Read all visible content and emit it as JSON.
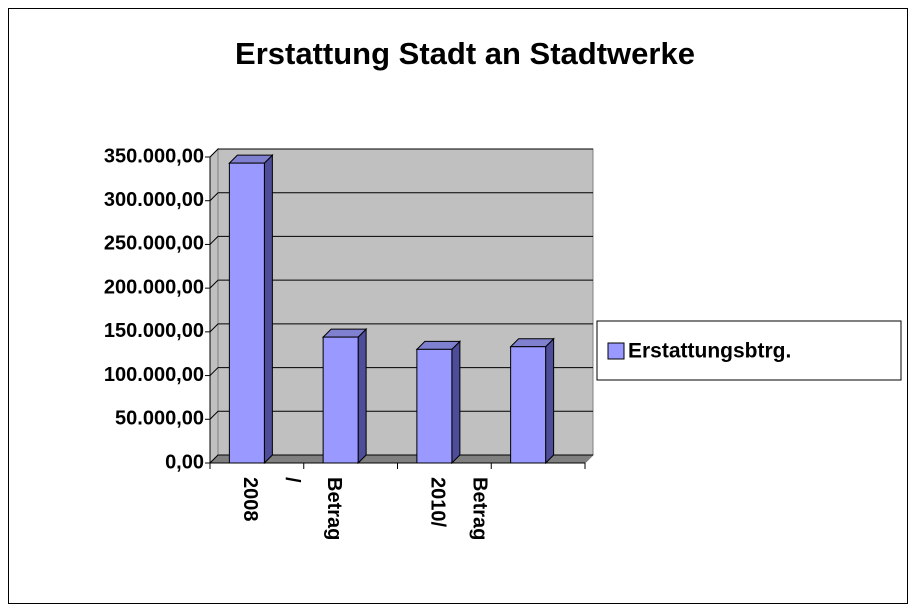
{
  "chart_data": {
    "type": "bar3d",
    "title": "Erstattung Stadt an Stadtwerke",
    "categories": [
      "2008 / Betrag",
      null,
      "2010/ Betrag",
      null
    ],
    "series": [
      {
        "name": "Erstattungsbtrg.",
        "color": "#9999ff",
        "values": [
          343000,
          144000,
          130000,
          133000
        ]
      }
    ],
    "ylim": [
      0,
      350000
    ],
    "yticks": [
      {
        "value": 0,
        "label": "0,00"
      },
      {
        "value": 50000,
        "label": "50.000,00"
      },
      {
        "value": 100000,
        "label": "100.000,00"
      },
      {
        "value": 150000,
        "label": "150.000,00"
      },
      {
        "value": 200000,
        "label": "200.000,00"
      },
      {
        "value": 250000,
        "label": "250.000,00"
      },
      {
        "value": 300000,
        "label": "300.000,00"
      },
      {
        "value": 350000,
        "label": "350.000,00"
      }
    ],
    "grid": true,
    "legend": "right"
  }
}
